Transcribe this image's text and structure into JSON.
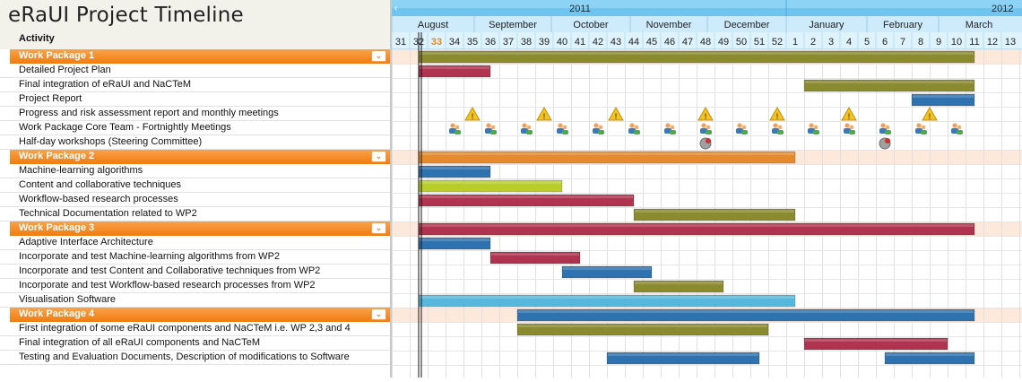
{
  "title": "eRaUI Project Timeline",
  "grid_header": "Activity",
  "collapse_glyph": "⌄",
  "colors": {
    "olive": "#8a8a2e",
    "crimson": "#b0334f",
    "steelblue": "#2f72b0",
    "orange": "#e68a2e",
    "lime": "#b8cc2a",
    "skyblue": "#56b8dc",
    "warning": "#f3c321",
    "wp_header": "#f07c10"
  },
  "timeline": {
    "years": [
      {
        "label": "2011",
        "start_week": 0,
        "end_week": 22
      },
      {
        "label": "2012",
        "start_week": 22,
        "end_week": 35
      }
    ],
    "months": [
      {
        "label": "August",
        "start": 0,
        "end": 4.6
      },
      {
        "label": "September",
        "start": 4.6,
        "end": 8.9
      },
      {
        "label": "October",
        "start": 8.9,
        "end": 13.3
      },
      {
        "label": "November",
        "start": 13.3,
        "end": 17.6
      },
      {
        "label": "December",
        "start": 17.6,
        "end": 22
      },
      {
        "label": "January",
        "start": 22,
        "end": 26.5
      },
      {
        "label": "February",
        "start": 26.5,
        "end": 30.5
      },
      {
        "label": "March",
        "start": 30.5,
        "end": 35
      }
    ],
    "weeks": [
      "31",
      "32",
      "33",
      "34",
      "35",
      "36",
      "37",
      "38",
      "39",
      "40",
      "41",
      "42",
      "43",
      "44",
      "45",
      "46",
      "47",
      "48",
      "49",
      "50",
      "51",
      "52",
      "1",
      "2",
      "3",
      "4",
      "5",
      "6",
      "7",
      "8",
      "9",
      "10",
      "11",
      "12",
      "13"
    ],
    "current_week_index": 2,
    "today_line_week": 1.5
  },
  "rows": [
    {
      "type": "wp",
      "label": "Work Package 1"
    },
    {
      "type": "task",
      "label": "Detailed Project Plan"
    },
    {
      "type": "task",
      "label": "Final integration of eRaUI and NaCTeM"
    },
    {
      "type": "task",
      "label": "Project Report"
    },
    {
      "type": "task",
      "label": "Progress and risk assessment report and monthly meetings"
    },
    {
      "type": "task",
      "label": "Work Package Core Team - Fortnightly Meetings"
    },
    {
      "type": "task",
      "label": "Half-day workshops (Steering Committee)"
    },
    {
      "type": "wp",
      "label": "Work Package 2"
    },
    {
      "type": "task",
      "label": "Machine-learning algorithms"
    },
    {
      "type": "task",
      "label": "Content and collaborative techniques"
    },
    {
      "type": "task",
      "label": "Workflow-based research processes"
    },
    {
      "type": "task",
      "label": "Technical Documentation related to WP2"
    },
    {
      "type": "wp",
      "label": "Work Package 3"
    },
    {
      "type": "task",
      "label": "Adaptive Interface Architecture"
    },
    {
      "type": "task",
      "label": "Incorporate and test Machine-learning algorithms from WP2"
    },
    {
      "type": "task",
      "label": "Incorporate and test Content and Collaborative techniques from WP2"
    },
    {
      "type": "task",
      "label": "Incorporate and test Workflow-based research processes from WP2"
    },
    {
      "type": "task",
      "label": "Visualisation Software"
    },
    {
      "type": "wp",
      "label": "Work Package 4"
    },
    {
      "type": "task",
      "label": "First integration of some eRaUI components and NaCTeM i.e. WP 2,3 and 4"
    },
    {
      "type": "task",
      "label": "Final integration of all eRaUI components and NaCTeM"
    },
    {
      "type": "task",
      "label": "Testing and Evaluation Documents, Description of modifications to Software"
    }
  ],
  "chart_data": {
    "type": "gantt",
    "title": "eRaUI Project Timeline",
    "x_unit": "week index (0 = week 31 of 2011)",
    "xlim": [
      0,
      35
    ],
    "bars": [
      {
        "row": 0,
        "start": 1.5,
        "end": 32.5,
        "color": "olive"
      },
      {
        "row": 1,
        "start": 1.5,
        "end": 5.5,
        "color": "crimson"
      },
      {
        "row": 2,
        "start": 23,
        "end": 32.5,
        "color": "olive"
      },
      {
        "row": 3,
        "start": 29,
        "end": 32.5,
        "color": "steelblue"
      },
      {
        "row": 7,
        "start": 1.5,
        "end": 22.5,
        "color": "orange"
      },
      {
        "row": 8,
        "start": 1.5,
        "end": 5.5,
        "color": "steelblue"
      },
      {
        "row": 9,
        "start": 1.5,
        "end": 9.5,
        "color": "lime"
      },
      {
        "row": 10,
        "start": 1.5,
        "end": 13.5,
        "color": "crimson"
      },
      {
        "row": 11,
        "start": 13.5,
        "end": 22.5,
        "color": "olive"
      },
      {
        "row": 12,
        "start": 1.5,
        "end": 32.5,
        "color": "crimson"
      },
      {
        "row": 13,
        "start": 1.5,
        "end": 5.5,
        "color": "steelblue"
      },
      {
        "row": 14,
        "start": 5.5,
        "end": 10.5,
        "color": "crimson"
      },
      {
        "row": 15,
        "start": 9.5,
        "end": 14.5,
        "color": "steelblue"
      },
      {
        "row": 16,
        "start": 13.5,
        "end": 18.5,
        "color": "olive"
      },
      {
        "row": 17,
        "start": 1.5,
        "end": 22.5,
        "color": "skyblue"
      },
      {
        "row": 18,
        "start": 7,
        "end": 32.5,
        "color": "steelblue"
      },
      {
        "row": 19,
        "start": 7,
        "end": 21,
        "color": "olive"
      },
      {
        "row": 20,
        "start": 23,
        "end": 31,
        "color": "crimson"
      },
      {
        "row": 21,
        "start": 12,
        "end": 20.5,
        "color": "steelblue"
      },
      {
        "row": 21,
        "start": 27.5,
        "end": 32.5,
        "color": "steelblue"
      }
    ],
    "milestones": [
      {
        "row": 4,
        "kind": "warning",
        "weeks": [
          4.5,
          8.5,
          12.5,
          17.5,
          21.5,
          25.5,
          30
        ]
      },
      {
        "row": 5,
        "kind": "meeting",
        "weeks": [
          3.5,
          5.5,
          7.5,
          9.5,
          11.5,
          13.5,
          15.5,
          17.5,
          19.5,
          21.5,
          23.5,
          25.5,
          27.5,
          29.5,
          31.5
        ]
      },
      {
        "row": 6,
        "kind": "workshop",
        "weeks": [
          17.5,
          27.5
        ]
      }
    ]
  }
}
